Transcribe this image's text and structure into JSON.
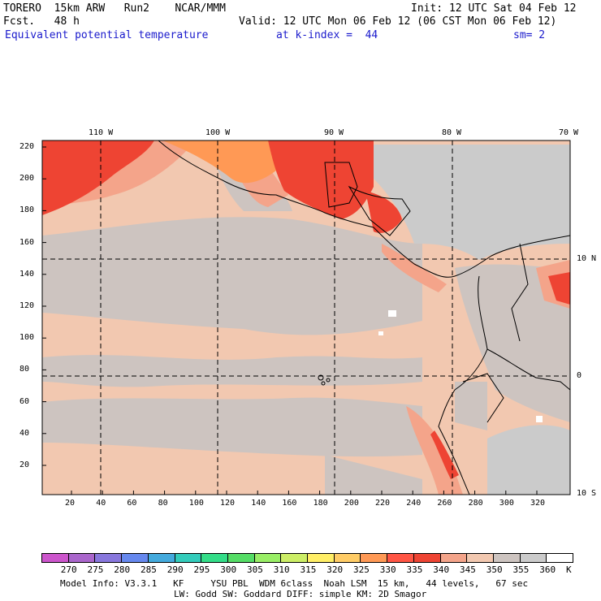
{
  "header": {
    "model": "TORERO  15km ARW   Run2    NCAR/MMM",
    "init": "Init: 12 UTC Sat 04 Feb 12",
    "fcst": "Fcst.   48 h",
    "valid": "Valid: 12 UTC Mon 06 Feb 12 (06 CST Mon 06 Feb 12)",
    "field": "Equivalent potential temperature",
    "level": "at k-index =  44",
    "smooth": "sm= 2"
  },
  "map": {
    "lon_labels": [
      "110 W",
      "100 W",
      "90 W",
      "80 W",
      "70 W"
    ],
    "lat_labels": [
      "10 N",
      "0",
      "10 S"
    ],
    "y_ticks": [
      "220",
      "200",
      "180",
      "160",
      "140",
      "120",
      "100",
      "80",
      "60",
      "40",
      "20"
    ],
    "x_ticks": [
      "20",
      "40",
      "60",
      "80",
      "100",
      "120",
      "140",
      "160",
      "180",
      "200",
      "220",
      "240",
      "260",
      "280",
      "300",
      "320"
    ]
  },
  "colorbar": {
    "labels": [
      "270",
      "275",
      "280",
      "285",
      "290",
      "295",
      "300",
      "305",
      "310",
      "315",
      "320",
      "325",
      "330",
      "335",
      "340",
      "345",
      "350",
      "355",
      "360"
    ],
    "unit": "K",
    "colors": [
      "#cc55cc",
      "#aa66cc",
      "#8877dd",
      "#6688ee",
      "#44aadd",
      "#33ccbb",
      "#33dd88",
      "#55dd66",
      "#99ee66",
      "#ccee66",
      "#ffee66",
      "#ffcc66",
      "#ff9955",
      "#ff5544",
      "#ee4433",
      "#f4a48a",
      "#f2c8b0",
      "#cdc4c0",
      "#cbcbcb",
      "#ffffff"
    ]
  },
  "footer": {
    "line1": "Model Info: V3.3.1   KF     YSU PBL  WDM 6class  Noah LSM  15 km,   44 levels,   67 sec",
    "line2": "LW: Godd SW: Goddard DIFF: simple KM: 2D Smagor"
  }
}
